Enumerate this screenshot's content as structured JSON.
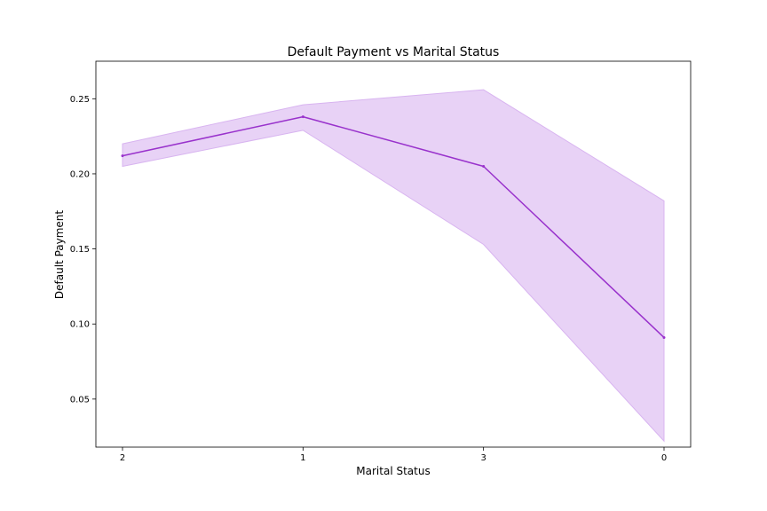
{
  "chart_data": {
    "type": "line",
    "title": "Default Payment vs Marital Status",
    "xlabel": "Marital Status",
    "ylabel": "Default Payment",
    "categories": [
      "2",
      "1",
      "3",
      "0"
    ],
    "series": [
      {
        "values": [
          0.212,
          0.238,
          0.205,
          0.091
        ],
        "ci_lower": [
          0.205,
          0.229,
          0.153,
          0.022
        ],
        "ci_upper": [
          0.22,
          0.246,
          0.256,
          0.182
        ],
        "line_color": "#9932CC",
        "band_color": "#D8B4F0"
      }
    ],
    "ylim": [
      0.018,
      0.275
    ],
    "yticks": [
      0.05,
      0.1,
      0.15,
      0.2,
      0.25
    ],
    "ytick_labels": [
      "0.05",
      "0.10",
      "0.15",
      "0.20",
      "0.25"
    ],
    "grid": false,
    "legend": "none"
  }
}
